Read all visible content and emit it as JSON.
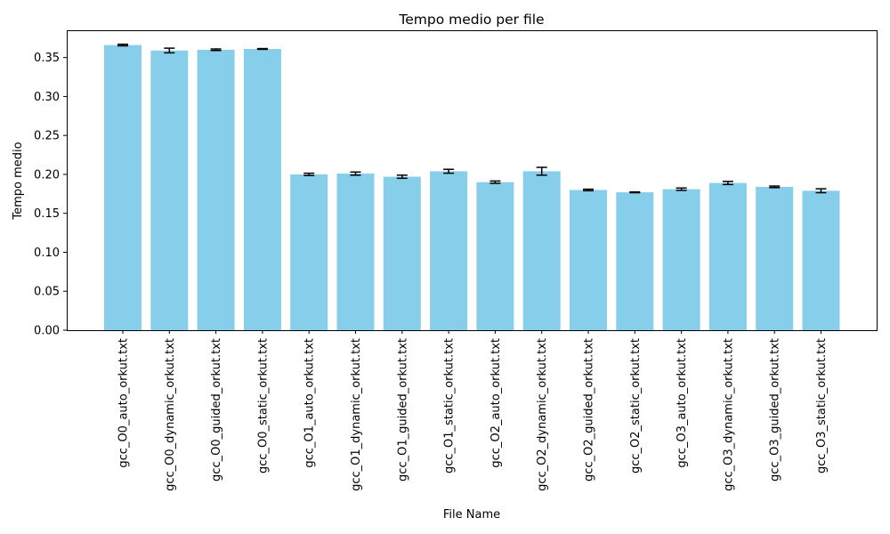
{
  "chart_data": {
    "type": "bar",
    "title": "Tempo medio per file",
    "xlabel": "File Name",
    "ylabel": "Tempo medio",
    "ylim": [
      0,
      0.385
    ],
    "yticks": [
      "0.00",
      "0.05",
      "0.10",
      "0.15",
      "0.20",
      "0.25",
      "0.30",
      "0.35"
    ],
    "grid": false,
    "bar_color": "#87ceeb",
    "error_color": "#000000",
    "categories": [
      "gcc_O0_auto_orkut.txt",
      "gcc_O0_dynamic_orkut.txt",
      "gcc_O0_guided_orkut.txt",
      "gcc_O0_static_orkut.txt",
      "gcc_O1_auto_orkut.txt",
      "gcc_O1_dynamic_orkut.txt",
      "gcc_O1_guided_orkut.txt",
      "gcc_O1_static_orkut.txt",
      "gcc_O2_auto_orkut.txt",
      "gcc_O2_dynamic_orkut.txt",
      "gcc_O2_guided_orkut.txt",
      "gcc_O2_static_orkut.txt",
      "gcc_O3_auto_orkut.txt",
      "gcc_O3_dynamic_orkut.txt",
      "gcc_O3_guided_orkut.txt",
      "gcc_O3_static_orkut.txt"
    ],
    "values": [
      0.366,
      0.359,
      0.36,
      0.361,
      0.2,
      0.201,
      0.197,
      0.204,
      0.19,
      0.204,
      0.18,
      0.177,
      0.181,
      0.189,
      0.184,
      0.179
    ],
    "errors": [
      0.001,
      0.003,
      0.001,
      0.0005,
      0.0015,
      0.002,
      0.002,
      0.0025,
      0.0015,
      0.005,
      0.001,
      0.0005,
      0.0015,
      0.002,
      0.001,
      0.0025
    ]
  }
}
